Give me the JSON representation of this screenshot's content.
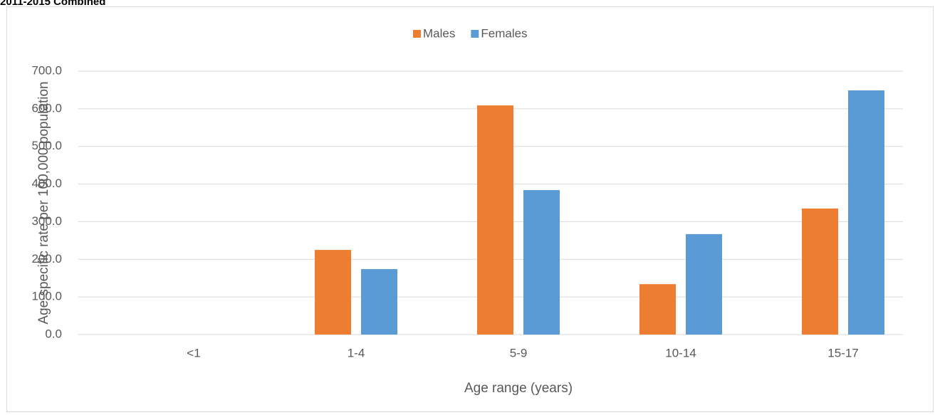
{
  "chart_data": {
    "type": "bar",
    "title": "2011-2015 Combined",
    "x_label": "Age range (years)",
    "y_label": "Age-specific rate per 100,000 population",
    "categories": [
      "<1",
      "1-4",
      "5-9",
      "10-14",
      "15-17"
    ],
    "series": [
      {
        "name": "Males",
        "color": "#ed7d31",
        "values": [
          0,
          225,
          609,
          134,
          335
        ]
      },
      {
        "name": "Females",
        "color": "#5b9bd5",
        "values": [
          0,
          174,
          384,
          267,
          649
        ]
      }
    ],
    "ylim": [
      0,
      700
    ],
    "yticks": [
      {
        "value": 0,
        "label": "0.0"
      },
      {
        "value": 100,
        "label": "100.0"
      },
      {
        "value": 200,
        "label": "200.0"
      },
      {
        "value": 300,
        "label": "300.0"
      },
      {
        "value": 400,
        "label": "400.0"
      },
      {
        "value": 500,
        "label": "500.0"
      },
      {
        "value": 600,
        "label": "600.0"
      },
      {
        "value": 700,
        "label": "700.0"
      }
    ],
    "grid": true,
    "legend": "top"
  }
}
